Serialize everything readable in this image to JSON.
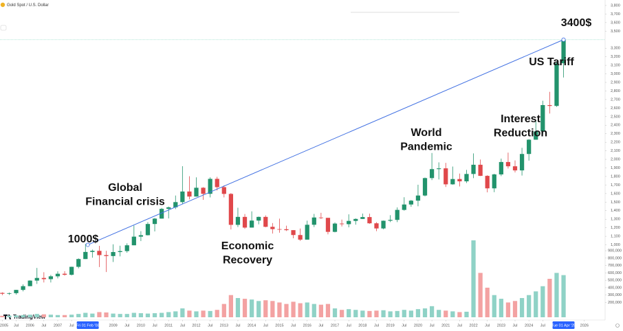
{
  "chart_data": {
    "type": "candlestick",
    "title": "Gold Spot / U.S. Dollar",
    "brand": "TradingView",
    "up_color": "#22936c",
    "down_color": "#e0484b",
    "volume_up_color": "#8fd2c6",
    "volume_down_color": "#f3a2a2",
    "trend_color": "#3f6fe2",
    "x": [
      "2005-01",
      "2005-04",
      "2005-07",
      "2005-10",
      "2006-01",
      "2006-04",
      "2006-07",
      "2006-10",
      "2007-01",
      "2007-04",
      "2007-07",
      "2007-10",
      "2008-01",
      "2008-04",
      "2008-07",
      "2008-10",
      "2009-01",
      "2009-04",
      "2009-07",
      "2009-10",
      "2010-01",
      "2010-04",
      "2010-07",
      "2010-10",
      "2011-01",
      "2011-04",
      "2011-07",
      "2011-10",
      "2012-01",
      "2012-04",
      "2012-07",
      "2012-10",
      "2013-01",
      "2013-04",
      "2013-07",
      "2013-10",
      "2014-01",
      "2014-04",
      "2014-07",
      "2014-10",
      "2015-01",
      "2015-04",
      "2015-07",
      "2015-10",
      "2016-01",
      "2016-04",
      "2016-07",
      "2016-10",
      "2017-01",
      "2017-04",
      "2017-07",
      "2017-10",
      "2018-01",
      "2018-04",
      "2018-07",
      "2018-10",
      "2019-01",
      "2019-04",
      "2019-07",
      "2019-10",
      "2020-01",
      "2020-04",
      "2020-07",
      "2020-10",
      "2021-01",
      "2021-04",
      "2021-07",
      "2021-10",
      "2022-01",
      "2022-04",
      "2022-07",
      "2022-10",
      "2023-01",
      "2023-04",
      "2023-07",
      "2023-10",
      "2024-01",
      "2024-04",
      "2024-07",
      "2024-10",
      "2025-01",
      "2025-04"
    ],
    "ohlc": [
      [
        438,
        445,
        411,
        428
      ],
      [
        428,
        442,
        414,
        435
      ],
      [
        435,
        474,
        418,
        473
      ],
      [
        473,
        538,
        456,
        517
      ],
      [
        517,
        585,
        517,
        582
      ],
      [
        582,
        730,
        543,
        613
      ],
      [
        613,
        680,
        560,
        599
      ],
      [
        599,
        648,
        560,
        632
      ],
      [
        632,
        690,
        608,
        662
      ],
      [
        662,
        692,
        640,
        650
      ],
      [
        650,
        745,
        642,
        743
      ],
      [
        743,
        842,
        725,
        834
      ],
      [
        834,
        1011,
        834,
        917
      ],
      [
        917,
        945,
        850,
        930
      ],
      [
        930,
        988,
        740,
        880
      ],
      [
        880,
        930,
        682,
        869
      ],
      [
        869,
        1006,
        800,
        916
      ],
      [
        916,
        990,
        865,
        927
      ],
      [
        927,
        1018,
        908,
        995
      ],
      [
        995,
        1226,
        995,
        1096
      ],
      [
        1096,
        1160,
        1044,
        1113
      ],
      [
        1113,
        1265,
        1110,
        1244
      ],
      [
        1244,
        1315,
        1157,
        1307
      ],
      [
        1307,
        1432,
        1307,
        1421
      ],
      [
        1421,
        1448,
        1309,
        1439
      ],
      [
        1439,
        1577,
        1418,
        1500
      ],
      [
        1500,
        1920,
        1478,
        1624
      ],
      [
        1624,
        1803,
        1532,
        1565
      ],
      [
        1565,
        1790,
        1565,
        1668
      ],
      [
        1668,
        1675,
        1527,
        1597
      ],
      [
        1597,
        1790,
        1555,
        1772
      ],
      [
        1772,
        1796,
        1636,
        1675
      ],
      [
        1675,
        1696,
        1555,
        1596
      ],
      [
        1596,
        1606,
        1180,
        1234
      ],
      [
        1234,
        1434,
        1208,
        1327
      ],
      [
        1327,
        1361,
        1187,
        1202
      ],
      [
        1202,
        1392,
        1202,
        1284
      ],
      [
        1284,
        1331,
        1240,
        1327
      ],
      [
        1327,
        1345,
        1206,
        1211
      ],
      [
        1211,
        1255,
        1132,
        1184
      ],
      [
        1184,
        1307,
        1142,
        1183
      ],
      [
        1183,
        1224,
        1162,
        1172
      ],
      [
        1172,
        1172,
        1077,
        1115
      ],
      [
        1115,
        1191,
        1046,
        1061
      ],
      [
        1061,
        1283,
        1061,
        1235
      ],
      [
        1235,
        1362,
        1208,
        1320
      ],
      [
        1320,
        1375,
        1302,
        1316
      ],
      [
        1316,
        1316,
        1123,
        1152
      ],
      [
        1152,
        1262,
        1146,
        1249
      ],
      [
        1249,
        1296,
        1215,
        1242
      ],
      [
        1242,
        1357,
        1205,
        1280
      ],
      [
        1280,
        1310,
        1236,
        1303
      ],
      [
        1303,
        1366,
        1303,
        1325
      ],
      [
        1325,
        1365,
        1246,
        1252
      ],
      [
        1252,
        1265,
        1160,
        1192
      ],
      [
        1192,
        1285,
        1182,
        1282
      ],
      [
        1282,
        1347,
        1266,
        1292
      ],
      [
        1292,
        1438,
        1266,
        1409
      ],
      [
        1409,
        1557,
        1400,
        1472
      ],
      [
        1472,
        1525,
        1445,
        1517
      ],
      [
        1517,
        1703,
        1451,
        1577
      ],
      [
        1577,
        1788,
        1567,
        1781
      ],
      [
        1781,
        2075,
        1757,
        1886
      ],
      [
        1886,
        1965,
        1765,
        1895
      ],
      [
        1895,
        1959,
        1677,
        1708
      ],
      [
        1708,
        1916,
        1704,
        1770
      ],
      [
        1770,
        1834,
        1683,
        1743
      ],
      [
        1743,
        1877,
        1723,
        1829
      ],
      [
        1829,
        2070,
        1781,
        1937
      ],
      [
        1937,
        1998,
        1805,
        1807
      ],
      [
        1807,
        1814,
        1614,
        1661
      ],
      [
        1661,
        1832,
        1616,
        1824
      ],
      [
        1824,
        2009,
        1804,
        1969
      ],
      [
        1969,
        2079,
        1893,
        1919
      ],
      [
        1919,
        1987,
        1847,
        1871
      ],
      [
        1871,
        2135,
        1811,
        2063
      ],
      [
        2063,
        2236,
        1985,
        2230
      ],
      [
        2230,
        2450,
        2230,
        2327
      ],
      [
        2327,
        2686,
        2294,
        2635
      ],
      [
        2635,
        2790,
        2536,
        2625
      ],
      [
        2625,
        3148,
        2614,
        3124
      ],
      [
        3124,
        3400,
        2957,
        3400
      ]
    ],
    "volume": [
      20000,
      22000,
      25000,
      30000,
      35000,
      45000,
      40000,
      35000,
      30000,
      30000,
      35000,
      45000,
      60000,
      50000,
      70000,
      65000,
      50000,
      45000,
      45000,
      60000,
      55000,
      50000,
      55000,
      60000,
      70000,
      80000,
      120000,
      90000,
      80000,
      90000,
      85000,
      100000,
      180000,
      300000,
      260000,
      250000,
      240000,
      220000,
      230000,
      220000,
      200000,
      180000,
      210000,
      190000,
      200000,
      180000,
      170000,
      180000,
      120000,
      100000,
      110000,
      100000,
      90000,
      85000,
      90000,
      95000,
      80000,
      85000,
      100000,
      90000,
      110000,
      120000,
      150000,
      100000,
      90000,
      80000,
      70000,
      75000,
      1040000,
      600000,
      400000,
      300000,
      250000,
      200000,
      220000,
      260000,
      300000,
      350000,
      420000,
      520000,
      600000,
      570000
    ],
    "xlim": [
      "2004-12",
      "2026-10"
    ],
    "xticks": [
      {
        "value": "2005-01",
        "label": "2005"
      },
      {
        "value": "2005-07",
        "label": "Jul"
      },
      {
        "value": "2006-01",
        "label": "2006"
      },
      {
        "value": "2006-07",
        "label": "Jul"
      },
      {
        "value": "2007-01",
        "label": "2007"
      },
      {
        "value": "2007-07",
        "label": "Jul"
      },
      {
        "value": "2009-01",
        "label": "2009"
      },
      {
        "value": "2009-07",
        "label": "Jul"
      },
      {
        "value": "2010-01",
        "label": "2010"
      },
      {
        "value": "2010-07",
        "label": "Jul"
      },
      {
        "value": "2011-01",
        "label": "2011"
      },
      {
        "value": "2011-07",
        "label": "Jul"
      },
      {
        "value": "2012-01",
        "label": "2012"
      },
      {
        "value": "2012-07",
        "label": "Jul"
      },
      {
        "value": "2013-01",
        "label": "2013"
      },
      {
        "value": "2013-07",
        "label": "Jul"
      },
      {
        "value": "2014-01",
        "label": "2014"
      },
      {
        "value": "2014-07",
        "label": "Jul"
      },
      {
        "value": "2015-01",
        "label": "2015"
      },
      {
        "value": "2015-07",
        "label": "Jul"
      },
      {
        "value": "2016-01",
        "label": "2016"
      },
      {
        "value": "2016-07",
        "label": "Jul"
      },
      {
        "value": "2017-01",
        "label": "2017"
      },
      {
        "value": "2017-07",
        "label": "Jul"
      },
      {
        "value": "2018-01",
        "label": "2018"
      },
      {
        "value": "2018-07",
        "label": "Jul"
      },
      {
        "value": "2019-01",
        "label": "2019"
      },
      {
        "value": "2019-07",
        "label": "Jul"
      },
      {
        "value": "2020-01",
        "label": "2020"
      },
      {
        "value": "2020-07",
        "label": "Jul"
      },
      {
        "value": "2021-01",
        "label": "2021"
      },
      {
        "value": "2021-07",
        "label": "Jul"
      },
      {
        "value": "2022-01",
        "label": "2022"
      },
      {
        "value": "2022-07",
        "label": "Jul"
      },
      {
        "value": "2023-01",
        "label": "2023"
      },
      {
        "value": "2023-07",
        "label": "Jul"
      },
      {
        "value": "2024-01",
        "label": "2024"
      },
      {
        "value": "2024-07",
        "label": "Jul"
      },
      {
        "value": "2026-01",
        "label": "2026"
      }
    ],
    "date_labels": [
      {
        "value": "2008-02",
        "label": "Fri 01 Feb '08"
      },
      {
        "value": "2025-04",
        "label": "Tue 01 Apr '25"
      }
    ],
    "ylim": [
      153,
      3864
    ],
    "yticks": [
      {
        "value": 1000,
        "label": "1,000"
      },
      {
        "value": 1100,
        "label": "1,100"
      },
      {
        "value": 1200,
        "label": "1,200"
      },
      {
        "value": 1300,
        "label": "1,300"
      },
      {
        "value": 1400,
        "label": "1,400"
      },
      {
        "value": 1500,
        "label": "1,500"
      },
      {
        "value": 1600,
        "label": "1,600"
      },
      {
        "value": 1700,
        "label": "1,700"
      },
      {
        "value": 1800,
        "label": "1,800"
      },
      {
        "value": 1900,
        "label": "1,900"
      },
      {
        "value": 2000,
        "label": "2,000"
      },
      {
        "value": 2100,
        "label": "2,100"
      },
      {
        "value": 2200,
        "label": "2,200"
      },
      {
        "value": 2300,
        "label": "2,300"
      },
      {
        "value": 2400,
        "label": "2,400"
      },
      {
        "value": 2500,
        "label": "2,500"
      },
      {
        "value": 2600,
        "label": "2,600"
      },
      {
        "value": 2700,
        "label": "2,700"
      },
      {
        "value": 2800,
        "label": "2,800"
      },
      {
        "value": 2900,
        "label": "2,900"
      },
      {
        "value": 3000,
        "label": "3,000"
      },
      {
        "value": 3100,
        "label": "3,100"
      },
      {
        "value": 3200,
        "label": "3,200"
      },
      {
        "value": 3300,
        "label": "3,300"
      },
      {
        "value": 3500,
        "label": "3,500"
      },
      {
        "value": 3600,
        "label": "3,600"
      },
      {
        "value": 3700,
        "label": "3,700"
      },
      {
        "value": 3800,
        "label": "3,800"
      }
    ],
    "volume_ylim": [
      0,
      4290000
    ],
    "volume_ticks": [
      {
        "value": 200000,
        "label": "200,000"
      },
      {
        "value": 300000,
        "label": "300,000"
      },
      {
        "value": 400000,
        "label": "400,000"
      },
      {
        "value": 500000,
        "label": "500,000"
      },
      {
        "value": 600000,
        "label": "600,000"
      },
      {
        "value": 700000,
        "label": "700,000"
      },
      {
        "value": 800000,
        "label": "800,000"
      },
      {
        "value": 900000,
        "label": "900,000"
      }
    ],
    "trendline": {
      "x": [
        "2008-02",
        "2025-04"
      ],
      "y": [
        1000,
        3400
      ]
    },
    "annotations": [
      [
        "1000$"
      ],
      [
        "3400$"
      ],
      [
        "Global",
        "Financial crisis"
      ],
      [
        "Economic",
        "Recovery"
      ],
      [
        "World",
        "Pandemic"
      ],
      [
        "Interest",
        "Reduction"
      ],
      [
        "US Tariff"
      ]
    ]
  }
}
